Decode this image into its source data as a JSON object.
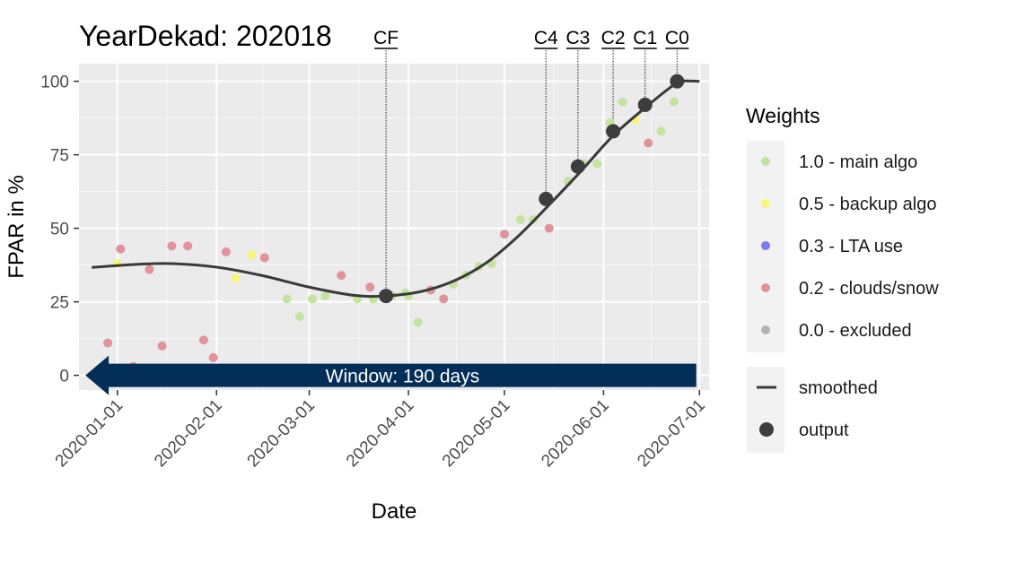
{
  "chart_data": {
    "type": "scatter",
    "title": "YearDekad: 202018",
    "xlabel": "Date",
    "ylabel": "FPAR in %",
    "x_range": [
      "2019-12-20",
      "2020-07-04"
    ],
    "ylim": [
      -5,
      106
    ],
    "x_ticks": [
      "2020-01-01",
      "2020-02-01",
      "2020-03-01",
      "2020-04-01",
      "2020-05-01",
      "2020-06-01",
      "2020-07-01"
    ],
    "y_ticks": [
      0,
      25,
      50,
      75,
      100
    ],
    "y_tick_labels": [
      "0",
      "25",
      "50",
      "75",
      "100"
    ],
    "grid": true,
    "legend_position": "right",
    "legend": {
      "weights_title": "Weights",
      "weights": [
        {
          "label": "1.0 - main algo",
          "color": "#c5e3a0"
        },
        {
          "label": "0.5 - backup algo",
          "color": "#f6f67a"
        },
        {
          "label": "0.3 - LTA use",
          "color": "#7b7bf0"
        },
        {
          "label": "0.2 - clouds/snow",
          "color": "#e0939b"
        },
        {
          "label": "0.0 - excluded",
          "color": "#b3b3b3"
        }
      ],
      "smoothed_label": "smoothed",
      "output_label": "output"
    },
    "points": {
      "main": [
        {
          "x": "2020-02-23",
          "y": 26
        },
        {
          "x": "2020-02-27",
          "y": 20
        },
        {
          "x": "2020-03-02",
          "y": 26
        },
        {
          "x": "2020-03-06",
          "y": 27
        },
        {
          "x": "2020-03-16",
          "y": 26
        },
        {
          "x": "2020-03-21",
          "y": 26
        },
        {
          "x": "2020-03-27",
          "y": 27
        },
        {
          "x": "2020-03-31",
          "y": 28
        },
        {
          "x": "2020-04-01",
          "y": 27
        },
        {
          "x": "2020-04-04",
          "y": 18
        },
        {
          "x": "2020-04-15",
          "y": 31
        },
        {
          "x": "2020-04-19",
          "y": 34
        },
        {
          "x": "2020-04-23",
          "y": 37
        },
        {
          "x": "2020-04-27",
          "y": 38
        },
        {
          "x": "2020-05-06",
          "y": 53
        },
        {
          "x": "2020-05-10",
          "y": 53
        },
        {
          "x": "2020-05-21",
          "y": 66
        },
        {
          "x": "2020-05-26",
          "y": 72
        },
        {
          "x": "2020-05-30",
          "y": 72
        },
        {
          "x": "2020-06-03",
          "y": 86
        },
        {
          "x": "2020-06-07",
          "y": 93
        },
        {
          "x": "2020-06-19",
          "y": 83
        },
        {
          "x": "2020-06-23",
          "y": 93
        }
      ],
      "backup": [
        {
          "x": "2020-01-01",
          "y": 38
        },
        {
          "x": "2020-02-07",
          "y": 33
        },
        {
          "x": "2020-02-12",
          "y": 41
        },
        {
          "x": "2020-06-11",
          "y": 87
        }
      ],
      "lta": [],
      "clouds": [
        {
          "x": "2019-12-27",
          "y": 2
        },
        {
          "x": "2019-12-29",
          "y": 11
        },
        {
          "x": "2020-01-02",
          "y": 43
        },
        {
          "x": "2020-01-06",
          "y": 3
        },
        {
          "x": "2020-01-11",
          "y": 36
        },
        {
          "x": "2020-01-15",
          "y": 10
        },
        {
          "x": "2020-01-18",
          "y": 44
        },
        {
          "x": "2020-01-23",
          "y": 44
        },
        {
          "x": "2020-01-28",
          "y": 12
        },
        {
          "x": "2020-01-31",
          "y": 6
        },
        {
          "x": "2020-02-04",
          "y": 42
        },
        {
          "x": "2020-02-16",
          "y": 40
        },
        {
          "x": "2020-03-11",
          "y": 34
        },
        {
          "x": "2020-03-20",
          "y": 30
        },
        {
          "x": "2020-04-08",
          "y": 29
        },
        {
          "x": "2020-04-12",
          "y": 26
        },
        {
          "x": "2020-05-01",
          "y": 48
        },
        {
          "x": "2020-05-15",
          "y": 50
        },
        {
          "x": "2020-06-15",
          "y": 79
        }
      ],
      "excluded": []
    },
    "smoothed": [
      {
        "x": "2019-12-24",
        "y": 36.7
      },
      {
        "x": "2020-01-08",
        "y": 37.8
      },
      {
        "x": "2020-01-18",
        "y": 38.0
      },
      {
        "x": "2020-02-01",
        "y": 36.8
      },
      {
        "x": "2020-02-15",
        "y": 34.0
      },
      {
        "x": "2020-03-01",
        "y": 30.0
      },
      {
        "x": "2020-03-15",
        "y": 27.2
      },
      {
        "x": "2020-03-25",
        "y": 27.0
      },
      {
        "x": "2020-04-05",
        "y": 28.5
      },
      {
        "x": "2020-04-15",
        "y": 32.0
      },
      {
        "x": "2020-04-25",
        "y": 38.0
      },
      {
        "x": "2020-05-05",
        "y": 47.0
      },
      {
        "x": "2020-05-15",
        "y": 58.0
      },
      {
        "x": "2020-05-25",
        "y": 69.5
      },
      {
        "x": "2020-06-04",
        "y": 81.5
      },
      {
        "x": "2020-06-14",
        "y": 91.0
      },
      {
        "x": "2020-06-22",
        "y": 98.0
      },
      {
        "x": "2020-06-25",
        "y": 100.0
      },
      {
        "x": "2020-07-01",
        "y": 100.0
      }
    ],
    "outputs": [
      {
        "label": "CF",
        "x": "2020-03-25",
        "y": 27
      },
      {
        "label": "C4",
        "x": "2020-05-14",
        "y": 60
      },
      {
        "label": "C3",
        "x": "2020-05-24",
        "y": 71
      },
      {
        "label": "C2",
        "x": "2020-06-04",
        "y": 83
      },
      {
        "label": "C1",
        "x": "2020-06-14",
        "y": 92
      },
      {
        "label": "C0",
        "x": "2020-06-24",
        "y": 100
      }
    ],
    "window": {
      "label": "Window: 190 days",
      "start": "2019-12-22",
      "end": "2020-06-30",
      "y": 0,
      "color": "#032e57"
    }
  }
}
